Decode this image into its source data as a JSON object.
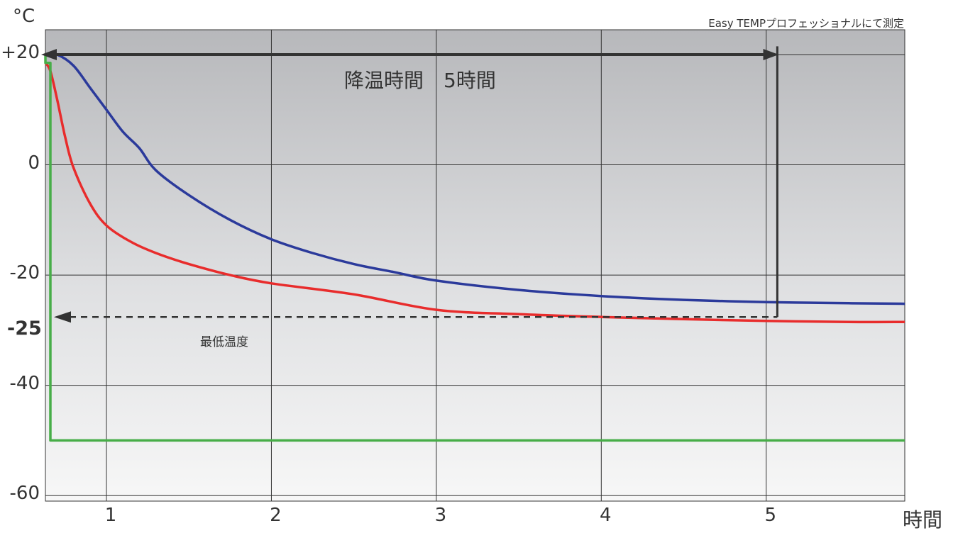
{
  "chart_data": {
    "type": "line",
    "unit_label": "°C",
    "note": "Easy TEMPプロフェッショナルにて測定",
    "xlabel": "時間",
    "x_ticks": [
      "1",
      "2",
      "3",
      "4",
      "5"
    ],
    "y_ticks": [
      "+20",
      "0",
      "-20",
      "-40",
      "-60"
    ],
    "xlim": [
      0.63,
      5.84
    ],
    "ylim": [
      -61,
      24.5
    ],
    "grid": true,
    "series": [
      {
        "color": "#2b3a9b",
        "x": [
          0.63,
          0.7,
          0.8,
          0.9,
          1.0,
          1.1,
          1.2,
          1.3,
          1.5,
          1.75,
          2.0,
          2.25,
          2.5,
          2.75,
          3.0,
          3.5,
          4.0,
          4.5,
          5.0,
          5.5,
          5.84
        ],
        "y": [
          20,
          20,
          18,
          14,
          10,
          6,
          3,
          -1,
          -5.5,
          -10,
          -13.5,
          -16,
          -18,
          -19.5,
          -21,
          -22.7,
          -23.8,
          -24.5,
          -24.9,
          -25.1,
          -25.2
        ]
      },
      {
        "color": "#e82c2c",
        "x": [
          0.63,
          0.66,
          0.7,
          0.75,
          0.8,
          0.9,
          1.0,
          1.15,
          1.3,
          1.5,
          1.75,
          2.0,
          2.5,
          3.0,
          3.5,
          4.0,
          4.5,
          5.0,
          5.5,
          5.84
        ],
        "y": [
          18.5,
          17,
          12,
          5,
          -0.5,
          -7,
          -11,
          -14,
          -16,
          -18,
          -20,
          -21.5,
          -23.5,
          -26.3,
          -27.1,
          -27.6,
          -28,
          -28.3,
          -28.5,
          -28.5
        ]
      },
      {
        "color": "#47ad48",
        "x": [
          0.63,
          0.63,
          0.66,
          0.66,
          5.84
        ],
        "y": [
          20,
          18.5,
          18.5,
          -50,
          -50
        ]
      }
    ],
    "annotations": {
      "duration_label": "降温時間　5時間",
      "duration_range": [
        0.63,
        5.05
      ],
      "min_label": "最低温度",
      "min_value_label": "-25",
      "min_value": -27.6
    }
  }
}
